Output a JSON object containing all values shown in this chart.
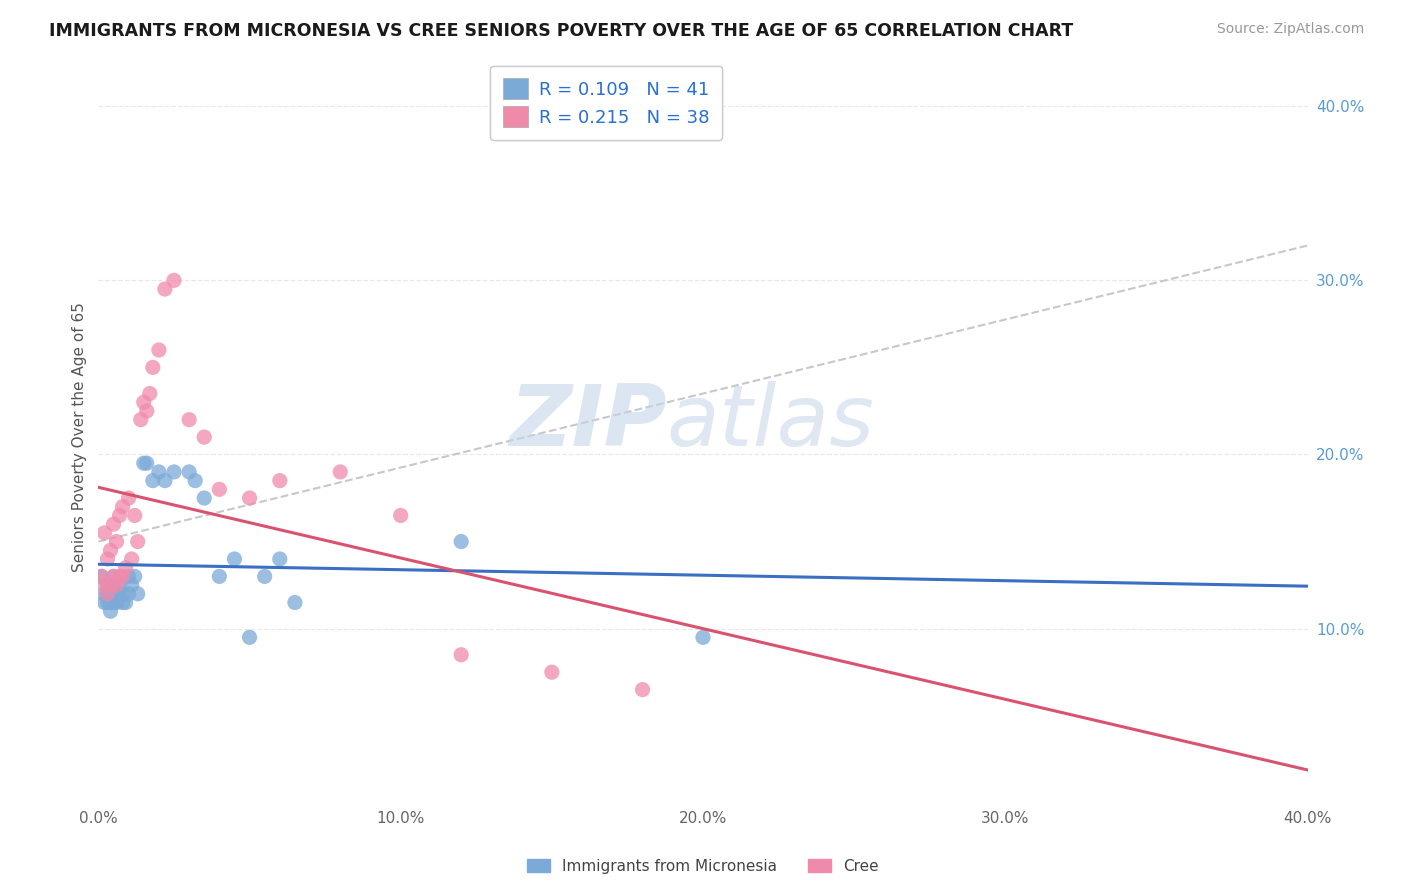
{
  "title": "IMMIGRANTS FROM MICRONESIA VS CREE SENIORS POVERTY OVER THE AGE OF 65 CORRELATION CHART",
  "source": "Source: ZipAtlas.com",
  "ylabel": "Seniors Poverty Over the Age of 65",
  "xlim": [
    0.0,
    0.4
  ],
  "ylim": [
    0.0,
    0.42
  ],
  "xticks": [
    0.0,
    0.1,
    0.2,
    0.3,
    0.4
  ],
  "xtick_labels": [
    "0.0%",
    "10.0%",
    "20.0%",
    "30.0%",
    "40.0%"
  ],
  "yticks_right": [
    0.1,
    0.2,
    0.3,
    0.4
  ],
  "ytick_labels_right": [
    "10.0%",
    "20.0%",
    "30.0%",
    "40.0%"
  ],
  "blue_scatter_color": "#7baad8",
  "pink_scatter_color": "#f08aab",
  "trend_blue": "#3a6fc4",
  "trend_pink": "#d9536f",
  "trend_gray": "#c8c8c8",
  "grid_color": "#e8e8e8",
  "legend_label1": "Immigrants from Micronesia",
  "legend_label2": "Cree",
  "watermark_zip": "ZIP",
  "watermark_atlas": "atlas",
  "blue_R": "0.109",
  "blue_N": "41",
  "pink_R": "0.215",
  "pink_N": "38",
  "blue_x": [
    0.001,
    0.002,
    0.002,
    0.003,
    0.003,
    0.003,
    0.004,
    0.004,
    0.004,
    0.005,
    0.005,
    0.005,
    0.006,
    0.006,
    0.007,
    0.007,
    0.008,
    0.008,
    0.009,
    0.01,
    0.01,
    0.011,
    0.012,
    0.013,
    0.015,
    0.016,
    0.018,
    0.02,
    0.022,
    0.025,
    0.03,
    0.032,
    0.035,
    0.04,
    0.045,
    0.05,
    0.055,
    0.06,
    0.065,
    0.12,
    0.2
  ],
  "blue_y": [
    0.13,
    0.115,
    0.12,
    0.115,
    0.12,
    0.125,
    0.11,
    0.115,
    0.125,
    0.115,
    0.125,
    0.13,
    0.115,
    0.12,
    0.12,
    0.125,
    0.115,
    0.12,
    0.115,
    0.12,
    0.13,
    0.125,
    0.13,
    0.12,
    0.195,
    0.195,
    0.185,
    0.19,
    0.185,
    0.19,
    0.19,
    0.185,
    0.175,
    0.13,
    0.14,
    0.095,
    0.13,
    0.14,
    0.115,
    0.15,
    0.095
  ],
  "pink_x": [
    0.001,
    0.002,
    0.002,
    0.003,
    0.003,
    0.004,
    0.004,
    0.005,
    0.005,
    0.006,
    0.006,
    0.007,
    0.007,
    0.008,
    0.008,
    0.009,
    0.01,
    0.011,
    0.012,
    0.013,
    0.014,
    0.015,
    0.016,
    0.017,
    0.018,
    0.02,
    0.022,
    0.025,
    0.03,
    0.035,
    0.04,
    0.05,
    0.06,
    0.08,
    0.1,
    0.12,
    0.15,
    0.18
  ],
  "pink_y": [
    0.13,
    0.125,
    0.155,
    0.12,
    0.14,
    0.125,
    0.145,
    0.13,
    0.16,
    0.125,
    0.15,
    0.13,
    0.165,
    0.13,
    0.17,
    0.135,
    0.175,
    0.14,
    0.165,
    0.15,
    0.22,
    0.23,
    0.225,
    0.235,
    0.25,
    0.26,
    0.295,
    0.3,
    0.22,
    0.21,
    0.18,
    0.175,
    0.185,
    0.19,
    0.165,
    0.085,
    0.075,
    0.065
  ]
}
